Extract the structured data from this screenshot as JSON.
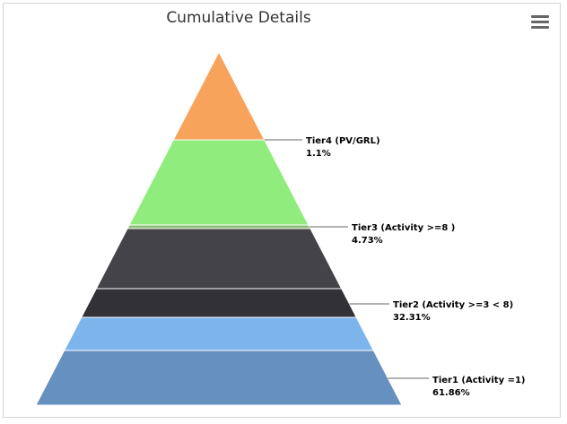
{
  "chart_data": {
    "type": "pyramid",
    "title": "Cumulative Details",
    "segments": [
      {
        "name": "Tier4 (PV/GRL)",
        "value": 1.1,
        "label": "1.1%",
        "color": "#f7a35c"
      },
      {
        "name": "Tier3 (Activity >=8 )",
        "value": 4.73,
        "label": "4.73%",
        "color": "#90ed7d"
      },
      {
        "name": "Tier2 (Activity >=3 < 8)",
        "value": 32.31,
        "label": "32.31%",
        "color": "#434348"
      },
      {
        "name": "Tier1 (Activity =1)",
        "value": 61.86,
        "label": "61.86%",
        "color": "#7cb5ec"
      }
    ],
    "drawn_bands": [
      {
        "color": "#f7a35c"
      },
      {
        "color": "#90ed7d"
      },
      {
        "color": "#434348"
      },
      {
        "color": "#323236"
      },
      {
        "color": "#7cb5ec"
      },
      {
        "color": "#6690c0"
      }
    ]
  },
  "toolbar": {
    "menu_icon": "hamburger-menu-icon"
  }
}
